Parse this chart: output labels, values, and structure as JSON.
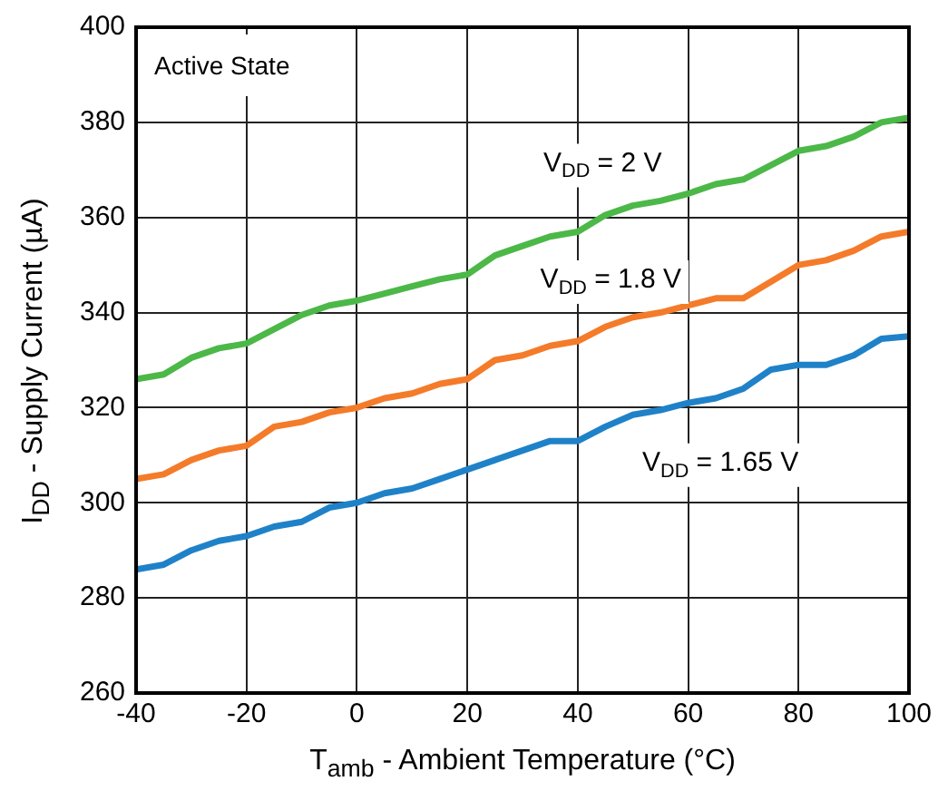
{
  "chart_data": {
    "type": "line",
    "xlabel": "T$_{amb}$ - Ambient Temperature (°C)",
    "ylabel": "I$_{DD}$ - Supply Current (µA)",
    "annotations": [
      "Active State"
    ],
    "x": [
      -40,
      -35,
      -30,
      -25,
      -20,
      -15,
      -10,
      -5,
      0,
      5,
      10,
      15,
      20,
      25,
      30,
      35,
      40,
      45,
      50,
      55,
      60,
      65,
      70,
      75,
      80,
      85,
      90,
      95,
      100
    ],
    "series": [
      {
        "name": "V$_{DD}$ = 2 V",
        "color": "#4cb848",
        "values": [
          326,
          327,
          330.5,
          332.5,
          333.5,
          336.5,
          339.5,
          341.5,
          342.5,
          344,
          345.5,
          347,
          348,
          352,
          354,
          356,
          357,
          360.5,
          362.5,
          363.5,
          365,
          367,
          368,
          371,
          374,
          375,
          377,
          380,
          381
        ]
      },
      {
        "name": "V$_{DD}$ = 1.8 V",
        "color": "#f47b2a",
        "values": [
          305,
          306,
          309,
          311,
          312,
          316,
          317,
          319,
          320,
          322,
          323,
          325,
          326,
          330,
          331,
          333,
          334,
          337,
          339,
          340,
          341.5,
          343,
          343,
          346.5,
          350,
          351,
          353,
          356,
          357
        ]
      },
      {
        "name": "V$_{DD}$ = 1.65 V",
        "color": "#1f82c8",
        "values": [
          286,
          287,
          290,
          292,
          293,
          295,
          296,
          299,
          300,
          302,
          303,
          305,
          307,
          309,
          311,
          313,
          313,
          316,
          318.5,
          319.5,
          321,
          322,
          324,
          328,
          329,
          329,
          331,
          334.5,
          335
        ]
      }
    ],
    "xlim": [
      -40,
      100
    ],
    "xticks": [
      -40,
      -20,
      0,
      20,
      40,
      60,
      80,
      100
    ],
    "ylim": [
      260,
      400
    ],
    "yticks": [
      260,
      280,
      300,
      320,
      340,
      360,
      380,
      400
    ],
    "grid": true,
    "legend": false,
    "marker": "none",
    "line_style": "solid"
  }
}
